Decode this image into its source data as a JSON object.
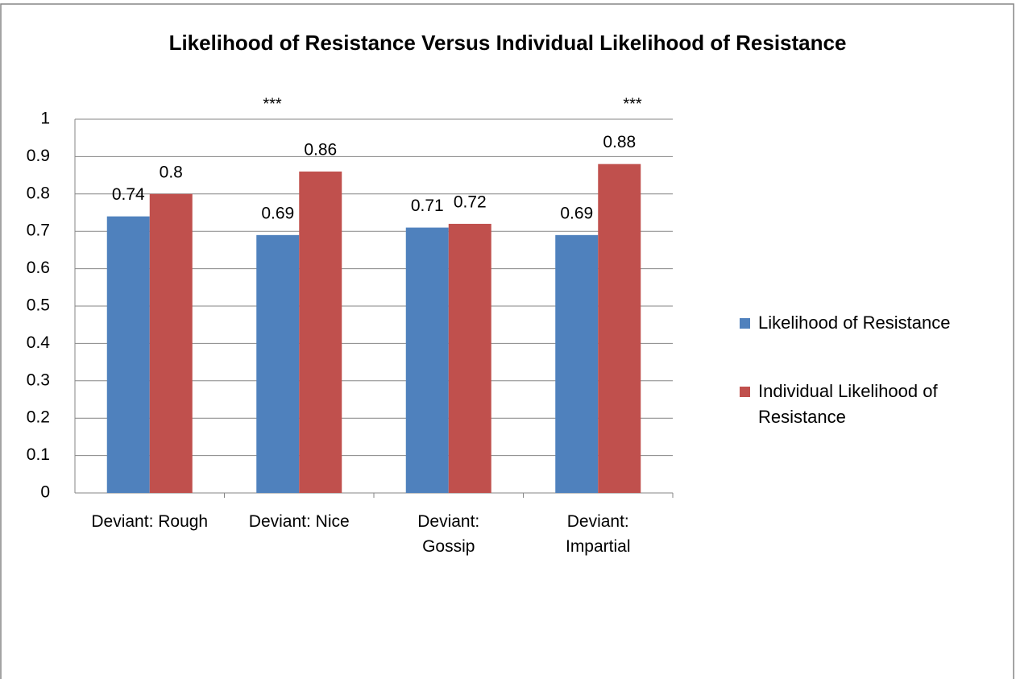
{
  "chart_data": {
    "type": "bar",
    "title": "Likelihood of Resistance Versus Individual Likelihood of Resistance",
    "categories": [
      "Deviant: Rough",
      "Deviant: Nice",
      "Deviant:\nGossip",
      "Deviant:\nImpartial"
    ],
    "series": [
      {
        "name": "Likelihood of Resistance",
        "color": "#4f81bd",
        "values": [
          0.74,
          0.69,
          0.71,
          0.69
        ]
      },
      {
        "name": "Individual Likelihood of Resistance",
        "color": "#c0504d",
        "values": [
          0.8,
          0.86,
          0.72,
          0.88
        ]
      }
    ],
    "annotations": [
      "***",
      "***"
    ],
    "ylim": [
      0,
      1
    ],
    "yticks": [
      0,
      0.1,
      0.2,
      0.3,
      0.4,
      0.5,
      0.6,
      0.7,
      0.8,
      0.9,
      1
    ],
    "grid": true,
    "legend": "right"
  }
}
